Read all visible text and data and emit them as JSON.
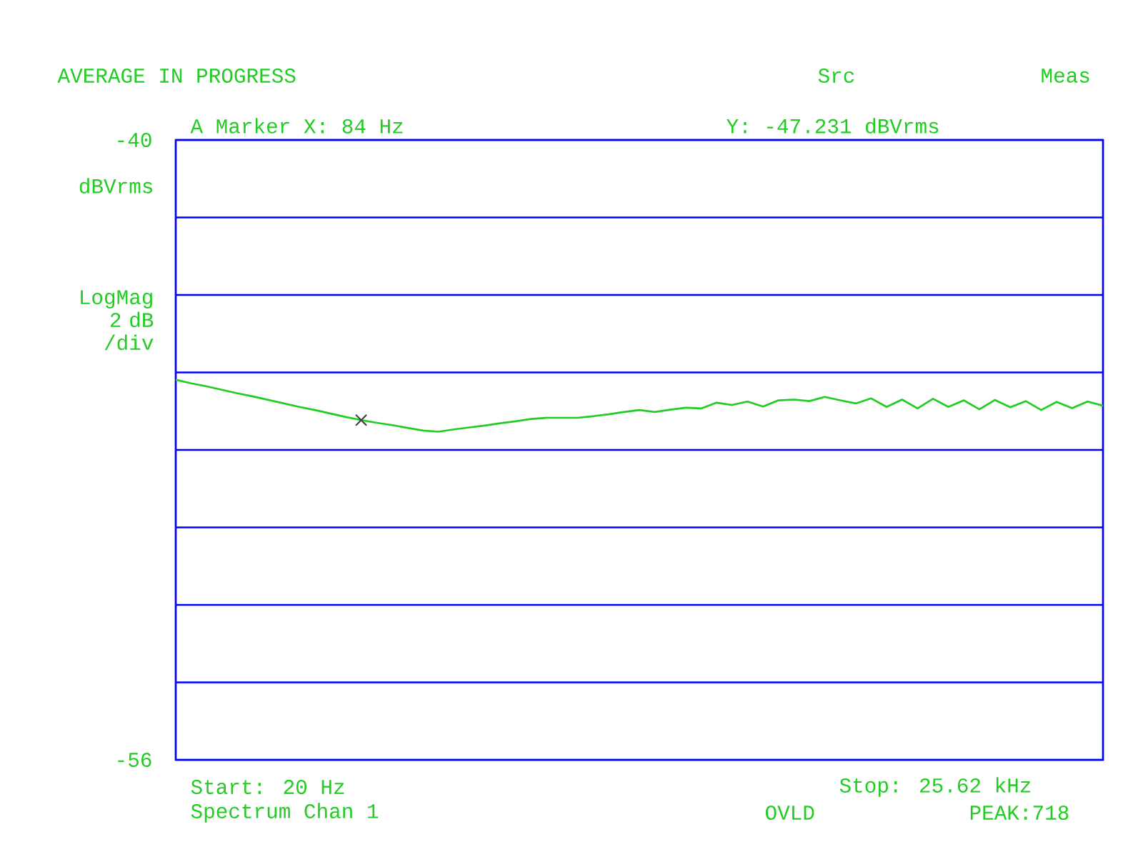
{
  "chart_data": {
    "type": "line",
    "title": "AVERAGE IN PROGRESS",
    "ylabel": "dBVrms",
    "categories": [
      null,
      null,
      null,
      null,
      null,
      null,
      null,
      null,
      null,
      null,
      null,
      null,
      null,
      null,
      null,
      null,
      null,
      null,
      null,
      null,
      null,
      null,
      null,
      null,
      null,
      null,
      null,
      null,
      null,
      null,
      null,
      null,
      null,
      null,
      null,
      null,
      null,
      null,
      null,
      null,
      null,
      null,
      null,
      null,
      null,
      null,
      null,
      null,
      null,
      null,
      null,
      null,
      null,
      null,
      null,
      null,
      null,
      null,
      null,
      null,
      null
    ],
    "series": [
      {
        "color": "#22cc22",
        "values": [
          -46.19,
          -46.28,
          -46.36,
          -46.45,
          -46.54,
          -46.62,
          -46.71,
          -46.8,
          -46.89,
          -46.97,
          -47.06,
          -47.15,
          -47.23,
          -47.3,
          -47.36,
          -47.43,
          -47.5,
          -47.53,
          -47.47,
          -47.42,
          -47.37,
          -47.31,
          -47.26,
          -47.2,
          -47.17,
          -47.17,
          -47.17,
          -47.13,
          -47.08,
          -47.02,
          -46.97,
          -47.02,
          -46.96,
          -46.91,
          -46.93,
          -46.78,
          -46.84,
          -46.75,
          -46.88,
          -46.72,
          -46.7,
          -46.74,
          -46.63,
          -46.72,
          -46.8,
          -46.67,
          -46.89,
          -46.7,
          -46.93,
          -46.68,
          -46.89,
          -46.72,
          -46.95,
          -46.71,
          -46.9,
          -46.74,
          -46.97,
          -46.76,
          -46.92,
          -46.75,
          -46.86
        ]
      },
      {
        "type": "scatter",
        "color": "#404040",
        "marker": "cross",
        "values": [
          null,
          null,
          null,
          null,
          null,
          null,
          null,
          null,
          null,
          null,
          null,
          null,
          -47.231,
          null,
          null,
          null,
          null,
          null,
          null,
          null,
          null,
          null,
          null,
          null,
          null,
          null,
          null,
          null,
          null,
          null,
          null,
          null,
          null,
          null,
          null,
          null,
          null,
          null,
          null,
          null,
          null,
          null,
          null,
          null,
          null,
          null,
          null,
          null,
          null,
          null,
          null,
          null,
          null,
          null,
          null,
          null,
          null,
          null,
          null,
          null,
          null
        ]
      }
    ],
    "ylim": [
      -56,
      -40
    ],
    "yticks": [
      -56,
      {
        "value": -54,
        "label": null
      },
      {
        "value": -52,
        "label": null
      },
      {
        "value": -50,
        "label": null
      },
      {
        "value": -48,
        "label": null
      },
      {
        "value": -46,
        "label": null
      },
      {
        "value": -44,
        "label": null
      },
      {
        "value": -42,
        "label": null
      },
      -40
    ],
    "grid": "y",
    "annotations": [
      "Src",
      "Meas",
      "A  Marker X: 84 Hz",
      "Y: -47.231 dBVrms",
      "LogMag 2 dB /div",
      "Start: 20 Hz",
      "Stop: 25.62 kHz",
      "Spectrum Chan 1",
      "OVLD",
      "PEAK:718"
    ]
  }
}
